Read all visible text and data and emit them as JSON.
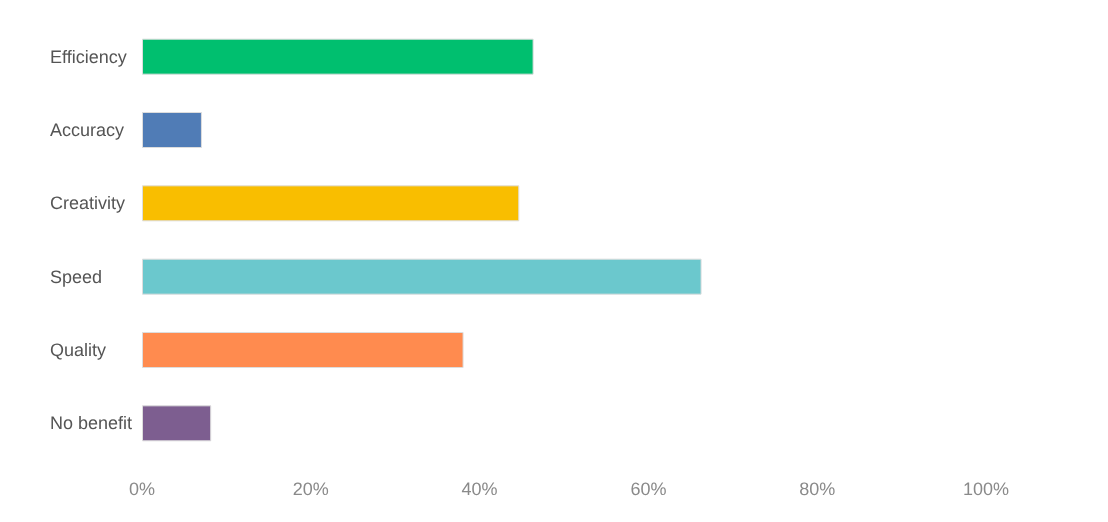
{
  "chart_data": {
    "type": "bar",
    "orientation": "horizontal",
    "categories": [
      "Efficiency",
      "Accuracy",
      "Creativity",
      "Speed",
      "Quality",
      "No benefit"
    ],
    "values": [
      46.4,
      7.1,
      44.7,
      66.3,
      38.1,
      8.2
    ],
    "colors": [
      "#00bf6f",
      "#507cb6",
      "#f9be00",
      "#6bc8cd",
      "#ff8b4f",
      "#7d5e90"
    ],
    "xlim": [
      0,
      100
    ],
    "xticks": [
      {
        "value": 0,
        "label": "0%"
      },
      {
        "value": 20,
        "label": "20%"
      },
      {
        "value": 40,
        "label": "40%"
      },
      {
        "value": 60,
        "label": "60%"
      },
      {
        "value": 80,
        "label": "80%"
      },
      {
        "value": 100,
        "label": "100%"
      }
    ],
    "grid": false
  }
}
